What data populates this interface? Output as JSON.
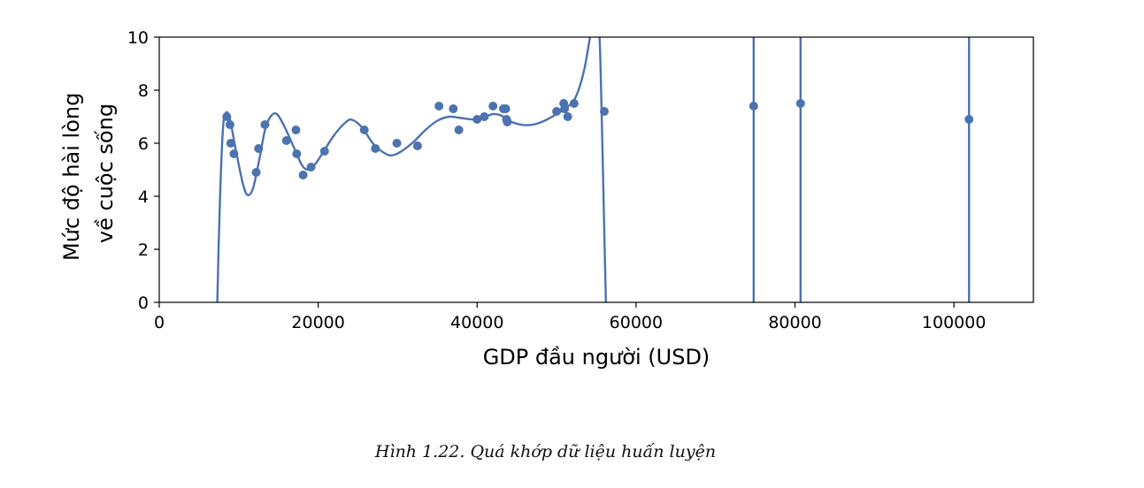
{
  "chart_data": {
    "type": "scatter",
    "xlabel": "GDP đầu người (USD)",
    "ylabel_lines": [
      "Mức độ hài lòng",
      "về cuộc sống"
    ],
    "xlim": [
      0,
      110000
    ],
    "ylim": [
      0,
      10
    ],
    "xticks": [
      0,
      20000,
      40000,
      60000,
      80000,
      100000
    ],
    "yticks": [
      0,
      2,
      4,
      6,
      8,
      10
    ],
    "grid": false,
    "marker_color": "#4c72b0",
    "line_color": "#4c72b0",
    "points": [
      [
        8500,
        7.0
      ],
      [
        8900,
        6.7
      ],
      [
        9000,
        6.0
      ],
      [
        9400,
        5.6
      ],
      [
        12200,
        4.9
      ],
      [
        12500,
        5.8
      ],
      [
        13300,
        6.7
      ],
      [
        16000,
        6.1
      ],
      [
        17200,
        6.5
      ],
      [
        17300,
        5.6
      ],
      [
        18100,
        4.8
      ],
      [
        19100,
        5.1
      ],
      [
        20800,
        5.7
      ],
      [
        25800,
        6.5
      ],
      [
        27200,
        5.8
      ],
      [
        29900,
        6.0
      ],
      [
        32500,
        5.9
      ],
      [
        35200,
        7.4
      ],
      [
        37000,
        7.3
      ],
      [
        37700,
        6.5
      ],
      [
        40000,
        6.9
      ],
      [
        40900,
        7.0
      ],
      [
        42000,
        7.4
      ],
      [
        43300,
        7.3
      ],
      [
        43600,
        7.3
      ],
      [
        43700,
        6.9
      ],
      [
        43800,
        6.8
      ],
      [
        50000,
        7.2
      ],
      [
        50900,
        7.5
      ],
      [
        51000,
        7.3
      ],
      [
        51400,
        7.0
      ],
      [
        52200,
        7.5
      ],
      [
        56000,
        7.2
      ],
      [
        74800,
        7.4
      ],
      [
        80700,
        7.5
      ],
      [
        101900,
        6.9
      ]
    ],
    "fit_curve": [
      [
        7300,
        0
      ],
      [
        7600,
        3.5
      ],
      [
        8000,
        6.5
      ],
      [
        8400,
        7.15
      ],
      [
        8900,
        6.9
      ],
      [
        9600,
        5.8
      ],
      [
        10500,
        4.5
      ],
      [
        11100,
        4.05
      ],
      [
        11800,
        4.3
      ],
      [
        12600,
        5.4
      ],
      [
        13300,
        6.5
      ],
      [
        14000,
        7.0
      ],
      [
        14800,
        7.1
      ],
      [
        15800,
        6.6
      ],
      [
        17000,
        5.8
      ],
      [
        18000,
        5.15
      ],
      [
        18800,
        5.0
      ],
      [
        19600,
        5.2
      ],
      [
        20500,
        5.6
      ],
      [
        22000,
        6.3
      ],
      [
        23500,
        6.8
      ],
      [
        24300,
        6.88
      ],
      [
        25500,
        6.6
      ],
      [
        27000,
        5.95
      ],
      [
        28500,
        5.6
      ],
      [
        29400,
        5.55
      ],
      [
        30500,
        5.7
      ],
      [
        32000,
        6.05
      ],
      [
        33500,
        6.5
      ],
      [
        35000,
        6.85
      ],
      [
        36500,
        7.0
      ],
      [
        38000,
        6.95
      ],
      [
        39500,
        6.9
      ],
      [
        41000,
        7.0
      ],
      [
        42000,
        7.1
      ],
      [
        43000,
        7.05
      ],
      [
        44000,
        6.85
      ],
      [
        45500,
        6.7
      ],
      [
        47000,
        6.7
      ],
      [
        48500,
        6.85
      ],
      [
        50000,
        7.1
      ],
      [
        51500,
        7.4
      ],
      [
        52500,
        7.8
      ],
      [
        53500,
        8.8
      ],
      [
        54500,
        10.4
      ],
      [
        55300,
        10.4
      ],
      [
        55600,
        8.0
      ],
      [
        55900,
        4.0
      ],
      [
        56200,
        0
      ]
    ],
    "spikes_x": [
      74800,
      80700,
      101900
    ]
  },
  "caption": "Hình 1.22. Quá khớp dữ liệu huấn luyện"
}
